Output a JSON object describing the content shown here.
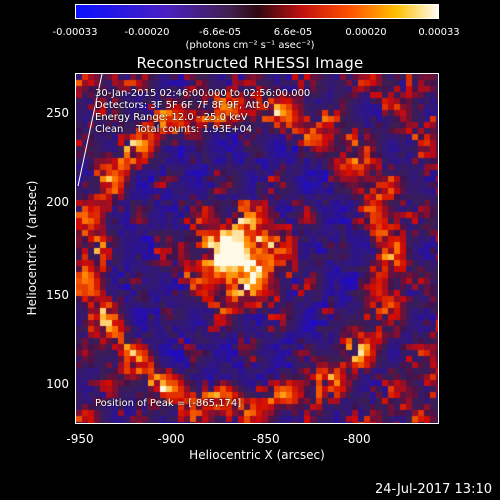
{
  "colorbar": {
    "ticks": [
      "-0.00033",
      "-0.00020",
      "-6.6e-05",
      "6.6e-05",
      "0.00020",
      "0.00033"
    ],
    "units": "(photons cm⁻² s⁻¹ asec⁻²)",
    "colors": [
      "#1010ff",
      "#5b1fa8",
      "#8a2020",
      "#ff4000",
      "#ffd000",
      "#ffffff"
    ]
  },
  "title": "Reconstructed RHESSI Image",
  "info": {
    "time": "30-Jan-2015 02:46:00.000 to 02:56:00.000",
    "detectors": "Detectors: 3F 5F 6F 7F 8F 9F, Att 0",
    "energy": "Energy Range: 12.0 - 25.0 keV",
    "method": "Clean    Total counts: 1.93E+04",
    "peak": "Position of Peak = [-865,174]"
  },
  "axes": {
    "xlabel": "Heliocentric X (arcsec)",
    "ylabel": "Heliocentric Y (arcsec)",
    "xticks": [
      "-950",
      "-900",
      "-850",
      "-800"
    ],
    "yticks": [
      "250",
      "200",
      "150",
      "100"
    ],
    "xrange": [
      -960,
      -815
    ],
    "yrange": [
      78,
      270
    ]
  },
  "timestamp": "24-Jul-2017 13:10"
}
